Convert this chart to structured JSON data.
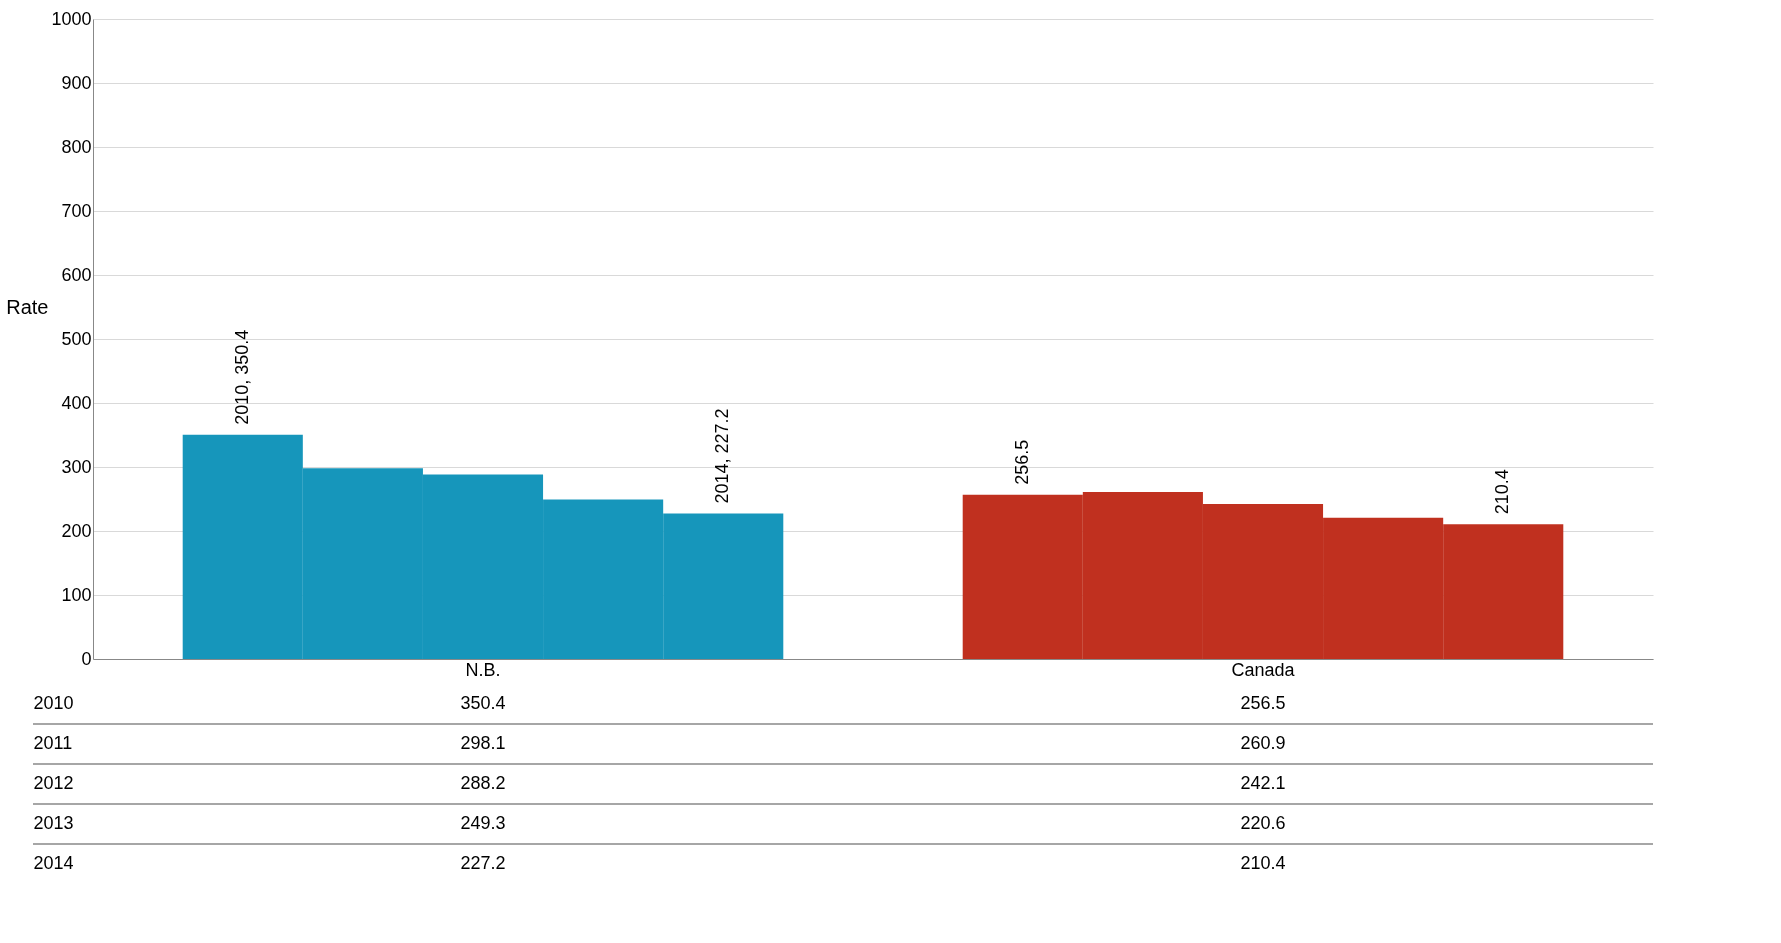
{
  "chart_data": {
    "type": "bar",
    "ylabel": "Rate",
    "categories": [
      "N.B.",
      "Canada"
    ],
    "series": [
      {
        "colors": [
          "#1696bb",
          "#c0301f"
        ],
        "values": [
          350.4,
          256.5
        ],
        "value_labels": [
          "350.4",
          "256.5"
        ]
      },
      {
        "colors": [
          "#1696bb",
          "#c0301f"
        ],
        "values": [
          298.1,
          260.9
        ],
        "value_labels": [
          "298.1",
          "260.9"
        ]
      },
      {
        "colors": [
          "#1696bb",
          "#c0301f"
        ],
        "values": [
          288.2,
          242.1
        ],
        "value_labels": [
          "288.2",
          "242.1"
        ]
      },
      {
        "colors": [
          "#1696bb",
          "#c0301f"
        ],
        "values": [
          249.3,
          220.6
        ],
        "value_labels": [
          "249.3",
          "220.6"
        ]
      },
      {
        "colors": [
          "#1696bb",
          "#c0301f"
        ],
        "values": [
          227.2,
          210.4
        ],
        "value_labels": [
          "227.2",
          "210.4"
        ]
      }
    ],
    "annotations": [
      "2010, 350.4",
      "2014, 227.2",
      "256.5",
      "210.4",
      "2010",
      "2011",
      "2012",
      "2013",
      "2014"
    ],
    "ylim": [
      0,
      1000
    ],
    "yticks": [
      0,
      100,
      200,
      300,
      400,
      500,
      600,
      700,
      800,
      900,
      1000
    ],
    "grid": "y"
  }
}
